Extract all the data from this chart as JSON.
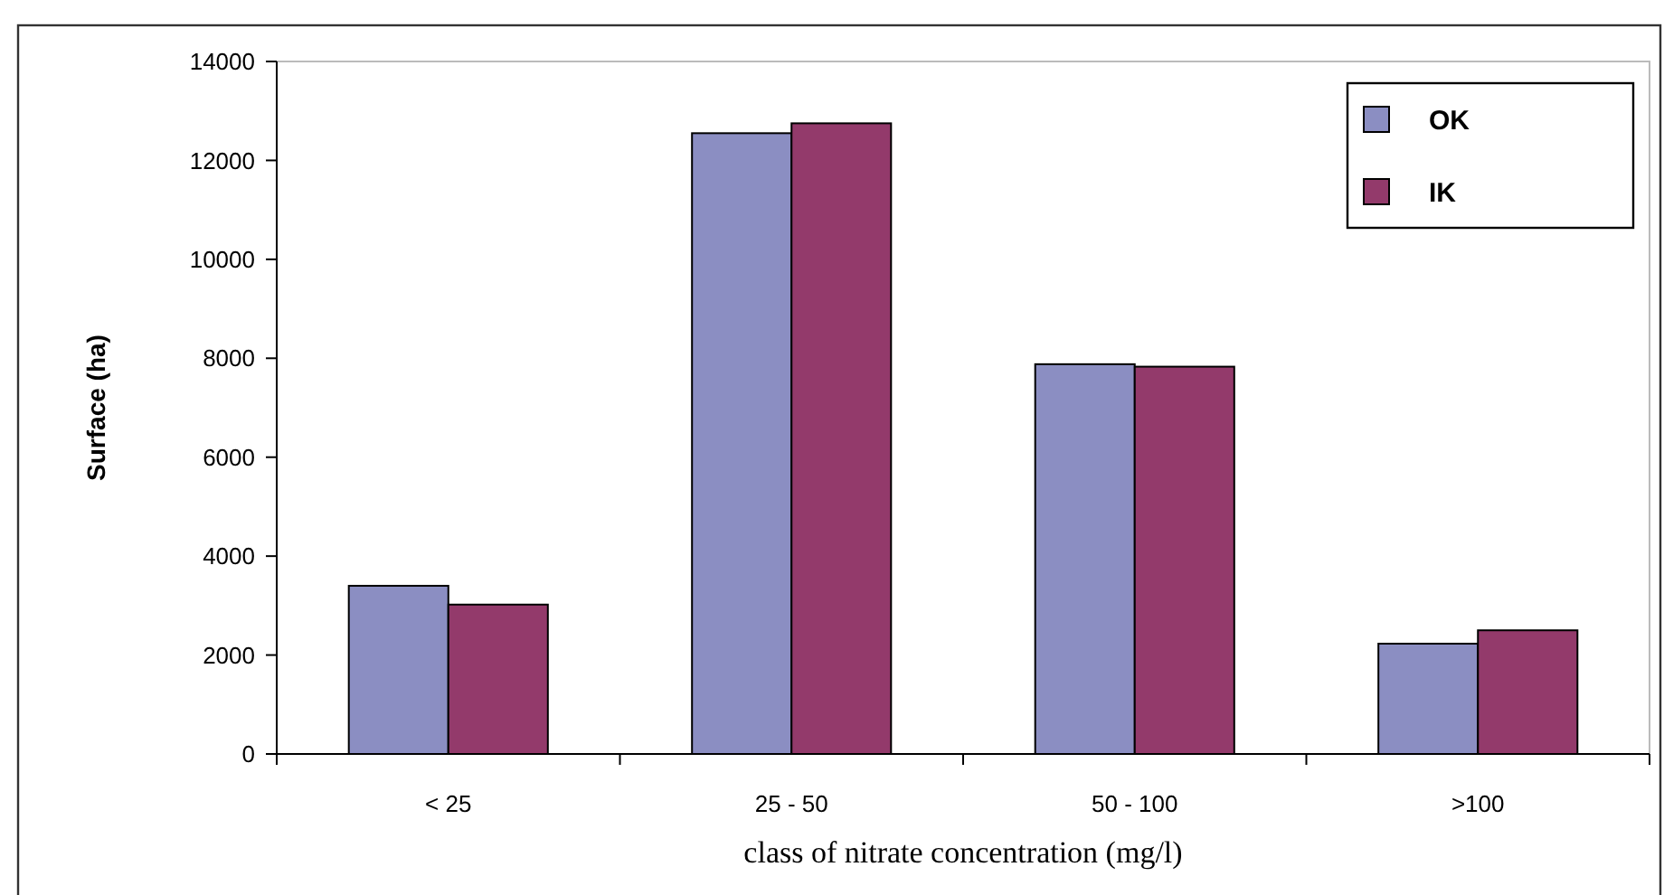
{
  "chart_data": {
    "type": "bar",
    "xlabel": "class of nitrate concentration (mg/l)",
    "ylabel": "Surface (ha)",
    "categories": [
      "< 25",
      "25 - 50",
      "50 - 100",
      ">100"
    ],
    "series": [
      {
        "name": "OK",
        "color": "#8b8ec2",
        "values": [
          3400,
          12550,
          7880,
          2230
        ]
      },
      {
        "name": "IK",
        "color": "#933a6b",
        "values": [
          3020,
          12750,
          7830,
          2500
        ]
      }
    ],
    "ylim": [
      0,
      14000
    ],
    "yticks": [
      0,
      2000,
      4000,
      6000,
      8000,
      10000,
      12000,
      14000
    ],
    "grid": false,
    "legend": "top right"
  }
}
